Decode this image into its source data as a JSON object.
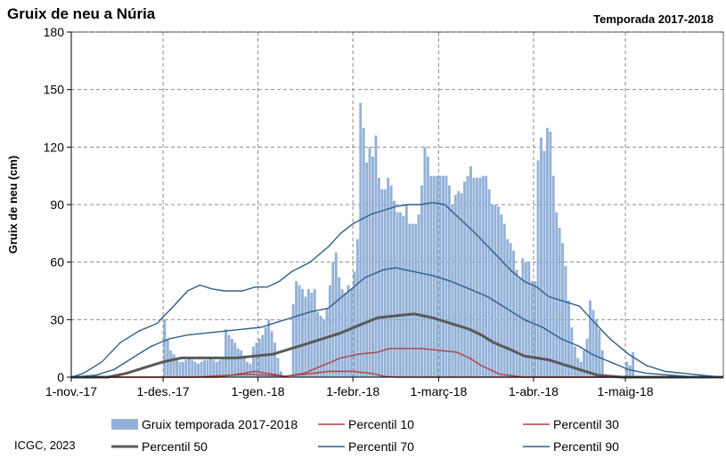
{
  "chart_data": {
    "type": "bar+line",
    "title": "Gruix de neu a Núria",
    "subtitle": "Temporada 2017-2018",
    "ylabel": "Gruix de neu (cm)",
    "xlabel": "",
    "ylim": [
      0,
      180
    ],
    "yticks": [
      0,
      30,
      60,
      90,
      120,
      150,
      180
    ],
    "xlim_days": [
      0,
      213
    ],
    "xticks": [
      {
        "day": 0,
        "label": "1-nov.-17"
      },
      {
        "day": 30,
        "label": "1-des.-17"
      },
      {
        "day": 61,
        "label": "1-gen.-18"
      },
      {
        "day": 92,
        "label": "1-febr.-18"
      },
      {
        "day": 120,
        "label": "1-març-18"
      },
      {
        "day": 151,
        "label": "1-abr.-18"
      },
      {
        "day": 181,
        "label": "1-maig-18"
      }
    ],
    "grid": true,
    "legend_position": "bottom",
    "credit": "ICGC, 2023",
    "series": [
      {
        "name": "Gruix temporada 2017-2018",
        "kind": "bar",
        "color": "#93B1D8",
        "values": [
          0,
          0,
          0,
          0,
          0,
          0,
          0,
          0,
          0,
          0,
          0,
          0,
          0,
          0,
          0,
          0,
          0,
          0,
          0,
          0,
          0,
          0,
          0,
          0,
          0,
          0,
          0,
          0,
          0,
          0,
          30,
          20,
          14,
          12,
          10,
          8,
          8,
          9,
          10,
          9,
          8,
          7,
          8,
          9,
          9,
          10,
          9,
          8,
          9,
          10,
          25,
          22,
          20,
          18,
          15,
          14,
          10,
          8,
          7,
          16,
          18,
          20,
          22,
          26,
          30,
          24,
          18,
          10,
          3,
          0,
          0,
          0,
          38,
          50,
          48,
          46,
          42,
          46,
          44,
          46,
          34,
          32,
          30,
          36,
          48,
          60,
          65,
          52,
          46,
          44,
          48,
          46,
          55,
          72,
          143,
          130,
          112,
          120,
          115,
          126,
          104,
          98,
          98,
          104,
          100,
          92,
          86,
          86,
          84,
          90,
          80,
          80,
          80,
          85,
          100,
          120,
          115,
          105,
          105,
          105,
          105,
          105,
          105,
          100,
          90,
          95,
          97,
          96,
          102,
          105,
          110,
          104,
          104,
          104,
          105,
          105,
          98,
          90,
          90,
          89,
          85,
          80,
          72,
          70,
          66,
          56,
          52,
          62,
          60,
          60,
          50,
          50,
          113,
          125,
          118,
          130,
          128,
          105,
          86,
          78,
          70,
          58,
          40,
          26,
          16,
          10,
          8,
          14,
          20,
          40,
          35,
          30,
          25,
          14,
          0,
          0,
          0,
          0,
          0,
          0,
          0,
          8,
          6,
          13,
          0,
          0,
          0,
          0,
          0,
          0,
          0,
          0,
          0,
          0,
          0,
          0,
          0,
          0,
          0,
          0,
          0,
          0,
          0,
          0
        ]
      },
      {
        "name": "Percentil 10",
        "kind": "line",
        "color": "#B0413E",
        "width": 1.4,
        "points": [
          [
            0,
            0
          ],
          [
            40,
            0
          ],
          [
            52,
            1
          ],
          [
            58,
            1.5
          ],
          [
            64,
            1
          ],
          [
            70,
            0.5
          ],
          [
            76,
            1.5
          ],
          [
            84,
            3
          ],
          [
            92,
            3
          ],
          [
            98,
            2
          ],
          [
            102,
            0.5
          ],
          [
            106,
            0
          ],
          [
            213,
            0
          ]
        ]
      },
      {
        "name": "Percentil 30",
        "kind": "line",
        "color": "#B0413E",
        "width": 1.4,
        "points": [
          [
            0,
            0
          ],
          [
            48,
            0
          ],
          [
            56,
            2
          ],
          [
            60,
            3
          ],
          [
            64,
            2
          ],
          [
            70,
            0.5
          ],
          [
            76,
            2
          ],
          [
            82,
            6
          ],
          [
            88,
            10
          ],
          [
            94,
            12
          ],
          [
            100,
            13
          ],
          [
            104,
            15
          ],
          [
            108,
            15
          ],
          [
            114,
            15
          ],
          [
            120,
            14
          ],
          [
            126,
            13
          ],
          [
            130,
            10
          ],
          [
            134,
            6
          ],
          [
            138,
            3
          ],
          [
            140,
            1.5
          ],
          [
            148,
            0
          ],
          [
            213,
            0
          ]
        ]
      },
      {
        "name": "Percentil 50",
        "kind": "line",
        "color": "#595959",
        "width": 3,
        "points": [
          [
            0,
            0
          ],
          [
            12,
            0
          ],
          [
            18,
            2
          ],
          [
            24,
            5
          ],
          [
            30,
            8
          ],
          [
            36,
            10
          ],
          [
            42,
            10
          ],
          [
            48,
            10
          ],
          [
            54,
            10
          ],
          [
            60,
            11
          ],
          [
            66,
            12
          ],
          [
            70,
            14
          ],
          [
            76,
            17
          ],
          [
            82,
            20
          ],
          [
            88,
            23
          ],
          [
            94,
            27
          ],
          [
            100,
            31
          ],
          [
            106,
            32
          ],
          [
            112,
            33
          ],
          [
            118,
            31
          ],
          [
            124,
            28
          ],
          [
            130,
            25
          ],
          [
            134,
            22
          ],
          [
            138,
            18
          ],
          [
            144,
            14
          ],
          [
            148,
            11
          ],
          [
            152,
            10
          ],
          [
            156,
            9
          ],
          [
            160,
            7
          ],
          [
            166,
            4
          ],
          [
            172,
            1
          ],
          [
            180,
            0
          ],
          [
            213,
            0
          ]
        ]
      },
      {
        "name": "Percentil 70",
        "kind": "line",
        "color": "#2F5F8A",
        "width": 1.4,
        "points": [
          [
            0,
            0
          ],
          [
            8,
            1
          ],
          [
            14,
            4
          ],
          [
            20,
            10
          ],
          [
            26,
            16
          ],
          [
            32,
            20
          ],
          [
            38,
            22
          ],
          [
            44,
            23
          ],
          [
            50,
            24
          ],
          [
            56,
            25
          ],
          [
            62,
            26
          ],
          [
            66,
            28
          ],
          [
            72,
            31
          ],
          [
            78,
            34
          ],
          [
            84,
            36
          ],
          [
            90,
            44
          ],
          [
            96,
            52
          ],
          [
            102,
            56
          ],
          [
            106,
            57
          ],
          [
            112,
            55
          ],
          [
            118,
            53
          ],
          [
            124,
            50
          ],
          [
            130,
            46
          ],
          [
            136,
            42
          ],
          [
            142,
            36
          ],
          [
            148,
            30
          ],
          [
            154,
            26
          ],
          [
            160,
            20
          ],
          [
            166,
            16
          ],
          [
            170,
            12
          ],
          [
            176,
            8
          ],
          [
            182,
            4
          ],
          [
            188,
            2
          ],
          [
            196,
            1
          ],
          [
            205,
            0
          ],
          [
            213,
            0
          ]
        ]
      },
      {
        "name": "Percentil 90",
        "kind": "line",
        "color": "#2F5F8A",
        "width": 1.4,
        "points": [
          [
            0,
            0
          ],
          [
            4,
            2
          ],
          [
            10,
            8
          ],
          [
            16,
            18
          ],
          [
            22,
            24
          ],
          [
            28,
            28
          ],
          [
            34,
            38
          ],
          [
            38,
            45
          ],
          [
            42,
            48
          ],
          [
            46,
            46
          ],
          [
            50,
            45
          ],
          [
            56,
            45
          ],
          [
            60,
            47
          ],
          [
            64,
            47
          ],
          [
            68,
            50
          ],
          [
            72,
            55
          ],
          [
            78,
            60
          ],
          [
            84,
            68
          ],
          [
            88,
            75
          ],
          [
            92,
            80
          ],
          [
            98,
            85
          ],
          [
            102,
            87
          ],
          [
            106,
            89
          ],
          [
            110,
            90
          ],
          [
            114,
            90
          ],
          [
            118,
            91
          ],
          [
            122,
            90
          ],
          [
            126,
            84
          ],
          [
            132,
            75
          ],
          [
            138,
            65
          ],
          [
            144,
            55
          ],
          [
            148,
            50
          ],
          [
            152,
            47
          ],
          [
            156,
            42
          ],
          [
            160,
            40
          ],
          [
            166,
            37
          ],
          [
            170,
            30
          ],
          [
            176,
            20
          ],
          [
            182,
            12
          ],
          [
            188,
            6
          ],
          [
            194,
            3
          ],
          [
            200,
            2
          ],
          [
            206,
            1
          ],
          [
            213,
            0
          ]
        ]
      }
    ]
  }
}
